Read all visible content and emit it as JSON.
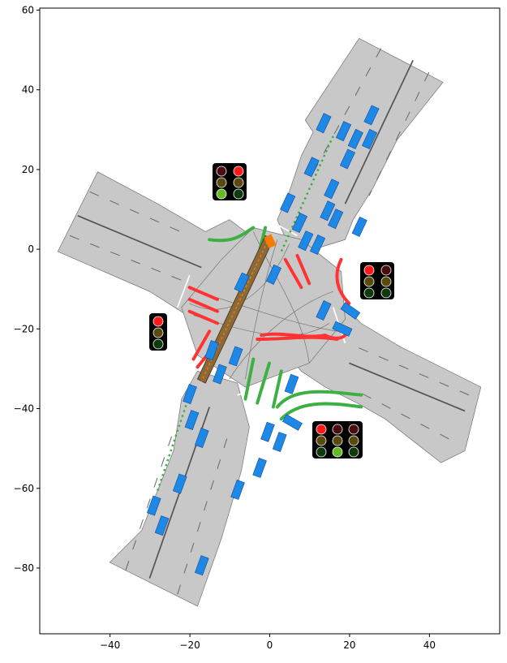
{
  "axes": {
    "x_ticks": [
      {
        "value": -40,
        "label": "−40"
      },
      {
        "value": -20,
        "label": "−20"
      },
      {
        "value": 0,
        "label": "0"
      },
      {
        "value": 20,
        "label": "20"
      },
      {
        "value": 40,
        "label": "40"
      }
    ],
    "y_ticks": [
      {
        "value": 60,
        "label": "60"
      },
      {
        "value": 40,
        "label": "40"
      },
      {
        "value": 20,
        "label": "20"
      },
      {
        "value": 0,
        "label": "0"
      },
      {
        "value": -20,
        "label": "−20"
      },
      {
        "value": -40,
        "label": "−40"
      },
      {
        "value": -60,
        "label": "−60"
      },
      {
        "value": -80,
        "label": "−80"
      }
    ],
    "xlim": [
      -57.6,
      57.6
    ],
    "ylim": [
      -96.5,
      60.5
    ]
  },
  "colors": {
    "road": "#c8c8c8",
    "vehicle": "#1e88e5",
    "ego_vehicle": "#f57c00",
    "green_route": "#3cb043",
    "red_route": "#ff3333",
    "light_bg": "#000000"
  },
  "traffic_lights": [
    {
      "id": "north",
      "x": -10,
      "y": 17.5,
      "states": [
        "green",
        "red"
      ]
    },
    {
      "id": "east",
      "x": 27,
      "y": -7.5,
      "states": [
        "red",
        "red"
      ]
    },
    {
      "id": "west",
      "x": -28,
      "y": -20.5,
      "states": [
        "red"
      ]
    },
    {
      "id": "south",
      "x": 17,
      "y": -48,
      "states": [
        "red",
        "green",
        "red"
      ]
    }
  ]
}
